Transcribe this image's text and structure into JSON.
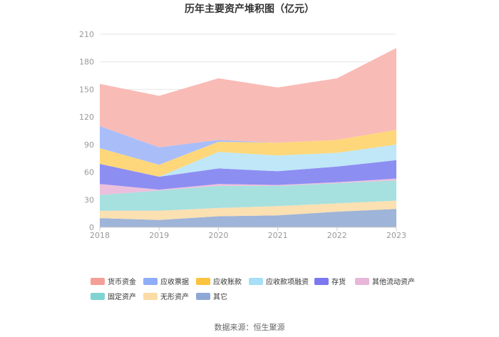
{
  "chart_data": {
    "type": "area",
    "stacked": true,
    "title": "历年主要资产堆积图（亿元）",
    "x": [
      "2018",
      "2019",
      "2020",
      "2021",
      "2022",
      "2023"
    ],
    "ylim": [
      0,
      210
    ],
    "yticks": [
      0,
      30,
      60,
      90,
      120,
      150,
      180,
      210
    ],
    "grid": true,
    "legend_position": "bottom",
    "series": [
      {
        "name": "其它",
        "color": "#9eb4d8",
        "values": [
          10,
          8,
          12,
          13,
          17,
          20
        ]
      },
      {
        "name": "无形资产",
        "color": "#fbe0b2",
        "values": [
          8,
          10,
          9,
          10,
          9,
          9
        ]
      },
      {
        "name": "固定资产",
        "color": "#a6e0df",
        "values": [
          17,
          22,
          24,
          22,
          22,
          22
        ]
      },
      {
        "name": "其他流动资产",
        "color": "#ecc0dd",
        "values": [
          12,
          1,
          2,
          1,
          1,
          2
        ]
      },
      {
        "name": "存货",
        "color": "#8d8ef2",
        "values": [
          22,
          14,
          17,
          15,
          17,
          20
        ]
      },
      {
        "name": "应收款项融资",
        "color": "#bfe7f8",
        "values": [
          0,
          0,
          18,
          17,
          15,
          17
        ]
      },
      {
        "name": "应收账款",
        "color": "#fed77a",
        "values": [
          17,
          13,
          11,
          14,
          14,
          16
        ]
      },
      {
        "name": "应收票据",
        "color": "#a9bef9",
        "values": [
          24,
          19,
          2,
          0,
          0,
          0
        ]
      },
      {
        "name": "货币资金",
        "color": "#f9bbb6",
        "values": [
          46,
          56,
          67,
          60,
          67,
          89
        ]
      }
    ],
    "legend": [
      {
        "name": "货币资金",
        "color": "#f49f97"
      },
      {
        "name": "应收票据",
        "color": "#8fadf8"
      },
      {
        "name": "应收账款",
        "color": "#fcc33e"
      },
      {
        "name": "应收款项融资",
        "color": "#a6dff6"
      },
      {
        "name": "存货",
        "color": "#7b78f0"
      },
      {
        "name": "其他流动资产",
        "color": "#e8b6d9"
      },
      {
        "name": "固定资产",
        "color": "#7fd4d2"
      },
      {
        "name": "无形资产",
        "color": "#fbdca6"
      },
      {
        "name": "其它",
        "color": "#8ea8d6"
      }
    ],
    "source": "数据来源：恒生聚源"
  }
}
